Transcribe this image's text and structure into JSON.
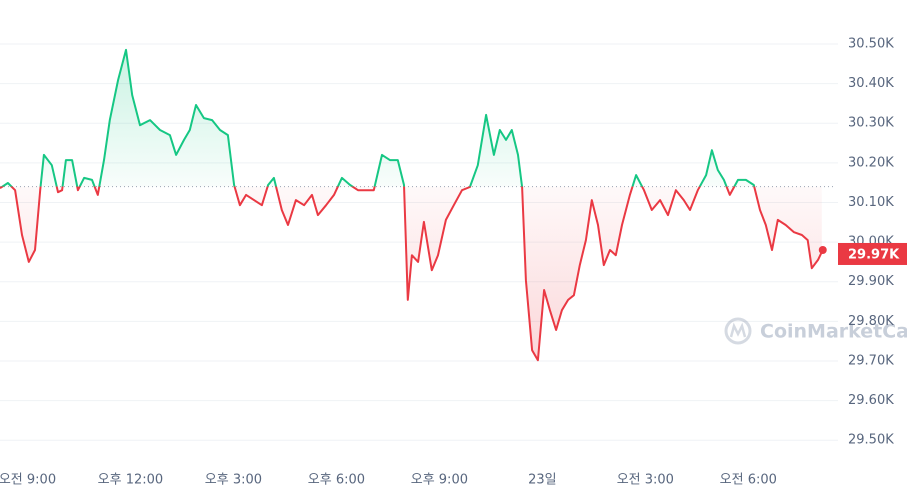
{
  "chart_data": {
    "type": "line",
    "xlim": [
      8.2,
      32.38
    ],
    "xticks": [
      {
        "value": 9,
        "label": "오전 9:00"
      },
      {
        "value": 12,
        "label": "오후 12:00"
      },
      {
        "value": 15,
        "label": "오후 3:00"
      },
      {
        "value": 18,
        "label": "오후 6:00"
      },
      {
        "value": 21,
        "label": "오후 9:00"
      },
      {
        "value": 24,
        "label": "23일"
      },
      {
        "value": 27,
        "label": "오전 3:00"
      },
      {
        "value": 30,
        "label": "오전 6:00"
      }
    ],
    "ylim": [
      29450,
      30611
    ],
    "yticks": [
      {
        "value": 29500,
        "label": "29.50K"
      },
      {
        "value": 29600,
        "label": "29.60K"
      },
      {
        "value": 29700,
        "label": "29.70K"
      },
      {
        "value": 29800,
        "label": "29.80K"
      },
      {
        "value": 29900,
        "label": "29.90K"
      },
      {
        "value": 30000,
        "label": "30.00K"
      },
      {
        "value": 30100,
        "label": "30.10K"
      },
      {
        "value": 30200,
        "label": "30.20K"
      },
      {
        "value": 30300,
        "label": "30.30K"
      },
      {
        "value": 30400,
        "label": "30.40K"
      },
      {
        "value": 30500,
        "label": "30.50K"
      }
    ],
    "grid": true,
    "baseline": 30140,
    "up_color": "#16c784",
    "down_color": "#ea3943",
    "x": [
      8.2,
      8.43,
      8.64,
      8.84,
      9.04,
      9.22,
      9.37,
      9.48,
      9.71,
      9.89,
      10.01,
      10.12,
      10.3,
      10.47,
      10.65,
      10.88,
      11.05,
      11.23,
      11.4,
      11.64,
      11.87,
      12.05,
      12.28,
      12.57,
      12.86,
      13.15,
      13.33,
      13.56,
      13.73,
      13.91,
      14.14,
      14.38,
      14.61,
      14.84,
      15.02,
      15.19,
      15.37,
      15.6,
      15.83,
      16.01,
      16.18,
      16.41,
      16.59,
      16.82,
      17.06,
      17.29,
      17.46,
      17.7,
      17.93,
      18.16,
      18.4,
      18.63,
      18.86,
      19.09,
      19.33,
      19.56,
      19.79,
      19.97,
      20.08,
      20.2,
      20.38,
      20.55,
      20.78,
      20.96,
      21.19,
      21.42,
      21.66,
      21.89,
      22.12,
      22.36,
      22.59,
      22.76,
      22.94,
      23.11,
      23.29,
      23.41,
      23.52,
      23.7,
      23.87,
      24.05,
      24.22,
      24.4,
      24.57,
      24.75,
      24.92,
      25.09,
      25.27,
      25.44,
      25.62,
      25.79,
      25.97,
      26.14,
      26.32,
      26.55,
      26.73,
      26.96,
      27.19,
      27.43,
      27.66,
      27.89,
      28.12,
      28.3,
      28.53,
      28.77,
      28.94,
      29.11,
      29.29,
      29.46,
      29.7,
      29.93,
      30.16,
      30.34,
      30.51,
      30.69,
      30.86,
      31.09,
      31.33,
      31.56,
      31.73,
      31.85,
      32.03,
      32.14
    ],
    "values": [
      30136,
      30149,
      30131,
      30018,
      29950,
      29980,
      30131,
      30220,
      30194,
      30126,
      30131,
      30207,
      30207,
      30131,
      30162,
      30157,
      30119,
      30207,
      30308,
      30409,
      30485,
      30371,
      30295,
      30308,
      30283,
      30270,
      30220,
      30258,
      30283,
      30346,
      30313,
      30308,
      30283,
      30270,
      30144,
      30093,
      30119,
      30106,
      30093,
      30144,
      30162,
      30081,
      30043,
      30106,
      30093,
      30119,
      30068,
      30093,
      30119,
      30162,
      30144,
      30131,
      30131,
      30131,
      30220,
      30207,
      30207,
      30144,
      29854,
      29967,
      29950,
      30051,
      29929,
      29967,
      30056,
      30093,
      30131,
      30139,
      30194,
      30321,
      30220,
      30283,
      30258,
      30283,
      30220,
      30139,
      29904,
      29727,
      29702,
      29879,
      29828,
      29778,
      29828,
      29854,
      29866,
      29942,
      30005,
      30106,
      30043,
      29942,
      29980,
      29967,
      30043,
      30119,
      30169,
      30131,
      30081,
      30106,
      30068,
      30131,
      30106,
      30081,
      30131,
      30169,
      30232,
      30182,
      30157,
      30119,
      30157,
      30157,
      30144,
      30081,
      30043,
      29980,
      30056,
      30043,
      30025,
      30018,
      30005,
      29934,
      29955,
      29975
    ],
    "price_tag": {
      "value": 29970,
      "label": "29.97K"
    },
    "watermark": "CoinMarketCap"
  }
}
